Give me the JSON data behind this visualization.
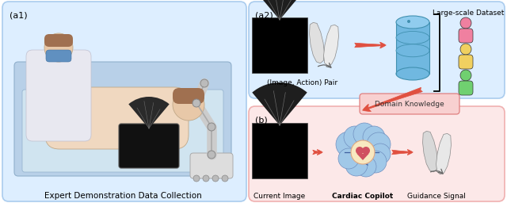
{
  "fig_width": 6.4,
  "fig_height": 2.56,
  "dpi": 100,
  "panel_a1": {
    "label": "(a1)",
    "caption": "Expert Demonstration Data Collection",
    "bg_color": "#ddeeff",
    "border_color": "#aaccee"
  },
  "panel_a2": {
    "label": "(a2)",
    "bg_color": "#ddeeff",
    "border_color": "#aaccee"
  },
  "panel_b": {
    "label": "(b)",
    "bg_color": "#fce8e8",
    "border_color": "#f0b0b0"
  },
  "a2_caption_image_action": "(Image, Action) Pair",
  "a2_caption_dataset": "Large-scale Dataset",
  "a2_domain_knowledge": "Domain Knowledge",
  "b_caption_current": "Current Image",
  "b_caption_copilot": "Cardiac Copilot",
  "b_caption_guidance": "Guidance Signal",
  "arrow_color": "#e05040",
  "domain_box_color": "#f8d0d0",
  "domain_border_color": "#e08080",
  "domain_text_color": "#333333",
  "db_color": "#70b8e0",
  "db_dark": "#4090b0",
  "person_colors": [
    "#f080a0",
    "#f0d060",
    "#70d070"
  ],
  "label_fontsize": 8,
  "caption_fontsize": 7.5,
  "small_fontsize": 6.5
}
